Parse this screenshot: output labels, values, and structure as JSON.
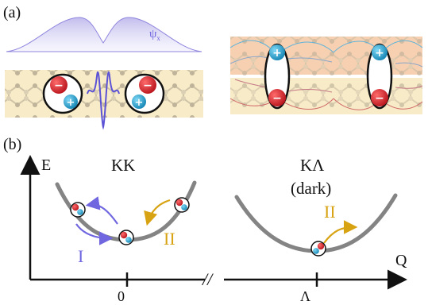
{
  "panels": {
    "a": {
      "label": "(a)",
      "wavefunction_label": "ψ",
      "wavefunction_subscript": "x"
    },
    "b": {
      "label": "(b)",
      "axis_energy": "E",
      "axis_momentum": "Q",
      "valley_left": "KK",
      "valley_right": "KΛ",
      "valley_right_note": "(dark)",
      "tick_zero": "0",
      "tick_lambda": "Λ",
      "break_mark": "//",
      "process_one": "I",
      "process_two_left": "II",
      "process_two_right": "II"
    }
  },
  "charges": {
    "electron": "−",
    "hole": "+"
  },
  "colors": {
    "electron": "#d2242c",
    "hole": "#22a3cf",
    "wavefunction": "#7a6fd6",
    "wavefunction_fill": "#b7b0ea",
    "process_one": "#6f66e0",
    "process_two": "#d8a313",
    "dispersion": "#6e6e6e",
    "layer": "#f7e7bd",
    "layer_top": "#f6c8a4"
  }
}
